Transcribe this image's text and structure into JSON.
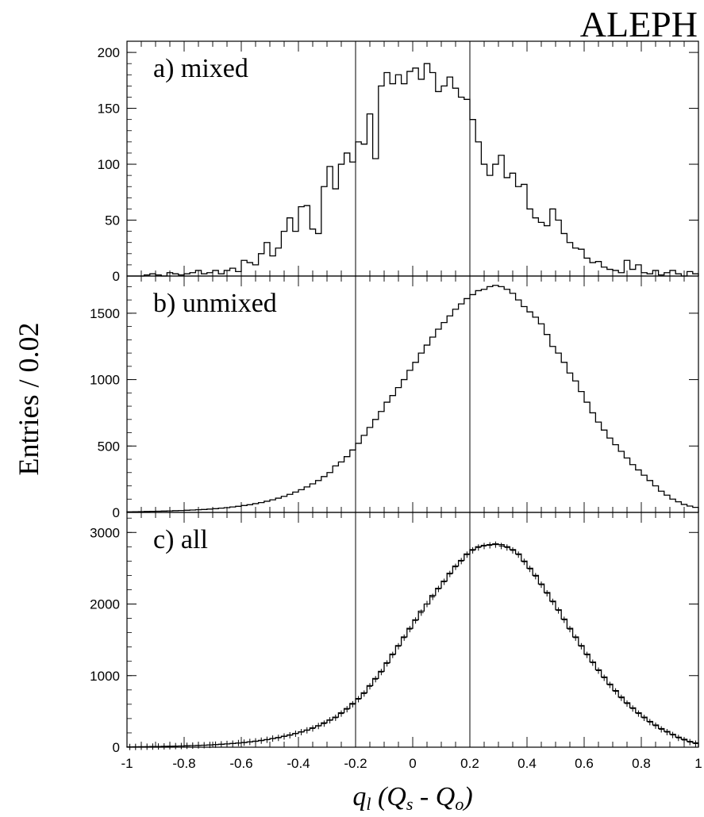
{
  "brand": "ALEPH",
  "chart_data": {
    "type": "histogram",
    "bin_width": 0.02,
    "x_range": [
      -1,
      1
    ],
    "x_ticks": [
      "-1",
      "-0.8",
      "-0.6",
      "-0.4",
      "-0.2",
      "0",
      "0.2",
      "0.4",
      "0.6",
      "0.8",
      "1"
    ],
    "x_label": {
      "q": "q",
      "q_sub": "l",
      "open": " (",
      "Q1": "Q",
      "Q1_sub": "s",
      "minus": " - ",
      "Q2": "Q",
      "Q2_sub": "o",
      "close": ")"
    },
    "y_label": "Entries / 0.02",
    "cut_lines": [
      -0.2,
      0.2
    ],
    "panels": [
      {
        "label": "a) mixed",
        "y_range": [
          0,
          210
        ],
        "y_ticks": [
          0,
          50,
          100,
          150,
          200
        ],
        "hist": [
          0,
          0,
          0,
          1,
          2,
          1,
          0,
          3,
          2,
          1,
          2,
          3,
          5,
          2,
          3,
          5,
          2,
          5,
          7,
          4,
          14,
          12,
          10,
          20,
          30,
          18,
          25,
          40,
          52,
          40,
          62,
          63,
          42,
          38,
          80,
          98,
          78,
          100,
          110,
          102,
          120,
          118,
          145,
          105,
          170,
          182,
          172,
          180,
          172,
          183,
          186,
          176,
          190,
          182,
          165,
          170,
          178,
          168,
          160,
          158,
          140,
          120,
          100,
          90,
          100,
          108,
          88,
          92,
          80,
          82,
          60,
          52,
          48,
          45,
          60,
          50,
          38,
          30,
          25,
          24,
          16,
          12,
          13,
          8,
          6,
          5,
          3,
          14,
          6,
          10,
          3,
          2,
          5,
          1,
          3,
          5,
          2,
          0,
          4,
          2
        ],
        "points": []
      },
      {
        "label": "b) unmixed",
        "y_range": [
          0,
          1780
        ],
        "y_ticks": [
          0,
          500,
          1000,
          1500
        ],
        "hist": [
          4,
          5,
          6,
          7,
          8,
          9,
          10,
          11,
          13,
          14,
          16,
          18,
          20,
          22,
          25,
          28,
          32,
          36,
          41,
          46,
          52,
          58,
          66,
          74,
          84,
          95,
          107,
          121,
          136,
          153,
          171,
          192,
          215,
          240,
          270,
          300,
          350,
          380,
          420,
          470,
          520,
          580,
          640,
          700,
          760,
          830,
          880,
          940,
          1000,
          1070,
          1130,
          1200,
          1260,
          1320,
          1380,
          1430,
          1480,
          1530,
          1570,
          1610,
          1640,
          1670,
          1680,
          1700,
          1710,
          1700,
          1680,
          1650,
          1600,
          1550,
          1510,
          1470,
          1420,
          1340,
          1250,
          1200,
          1130,
          1050,
          990,
          910,
          830,
          750,
          680,
          620,
          560,
          510,
          460,
          410,
          360,
          320,
          280,
          240,
          200,
          160,
          130,
          100,
          80,
          60,
          48,
          38
        ],
        "points": []
      },
      {
        "label": "c) all",
        "y_range": [
          0,
          3280
        ],
        "y_ticks": [
          0,
          1000,
          2000,
          3000
        ],
        "hist": [
          4,
          5,
          6,
          7,
          9,
          10,
          12,
          13,
          15,
          17,
          20,
          22,
          25,
          28,
          32,
          36,
          41,
          46,
          52,
          58,
          66,
          74,
          84,
          95,
          107,
          121,
          136,
          153,
          171,
          192,
          215,
          240,
          270,
          300,
          340,
          380,
          420,
          480,
          540,
          610,
          680,
          760,
          860,
          960,
          1060,
          1180,
          1300,
          1420,
          1540,
          1660,
          1780,
          1900,
          2000,
          2120,
          2220,
          2320,
          2430,
          2530,
          2610,
          2700,
          2760,
          2800,
          2820,
          2830,
          2840,
          2830,
          2800,
          2760,
          2700,
          2600,
          2500,
          2400,
          2280,
          2160,
          2040,
          1920,
          1790,
          1660,
          1540,
          1420,
          1300,
          1190,
          1080,
          980,
          880,
          790,
          700,
          620,
          550,
          480,
          420,
          360,
          310,
          260,
          220,
          180,
          140,
          110,
          80,
          60
        ],
        "points": [
          3,
          4,
          6,
          7,
          8,
          10,
          11,
          13,
          15,
          17,
          19,
          22,
          25,
          28,
          32,
          36,
          40,
          46,
          50,
          58,
          64,
          74,
          82,
          92,
          104,
          120,
          130,
          150,
          166,
          188,
          210,
          236,
          262,
          296,
          330,
          376,
          412,
          470,
          530,
          600,
          670,
          750,
          850,
          950,
          1050,
          1170,
          1290,
          1410,
          1530,
          1650,
          1770,
          1880,
          2000,
          2100,
          2210,
          2310,
          2420,
          2520,
          2600,
          2690,
          2750,
          2790,
          2810,
          2820,
          2830,
          2810,
          2790,
          2750,
          2690,
          2590,
          2490,
          2390,
          2270,
          2150,
          2030,
          1910,
          1780,
          1650,
          1530,
          1410,
          1290,
          1180,
          1070,
          970,
          870,
          780,
          690,
          610,
          540,
          470,
          410,
          350,
          300,
          250,
          210,
          170,
          130,
          100,
          70,
          50
        ]
      }
    ]
  }
}
